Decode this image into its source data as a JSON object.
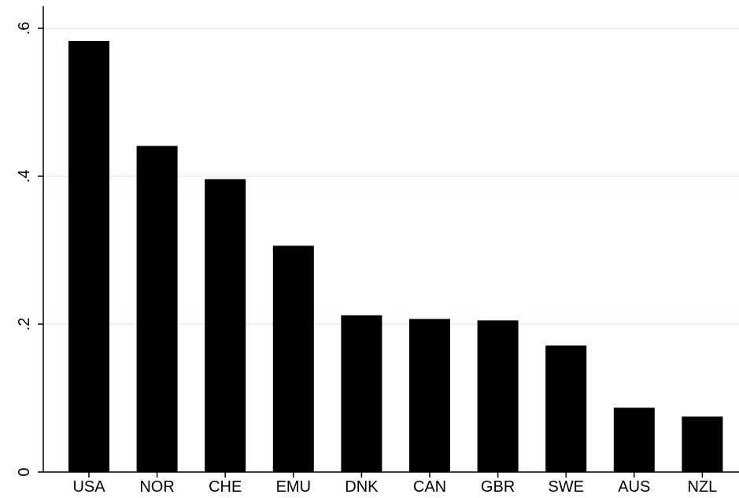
{
  "chart_data": {
    "type": "bar",
    "title": "",
    "xlabel": "",
    "ylabel": "",
    "categories": [
      "USA",
      "NOR",
      "CHE",
      "EMU",
      "DNK",
      "CAN",
      "GBR",
      "SWE",
      "AUS",
      "NZL"
    ],
    "values": [
      0.583,
      0.441,
      0.396,
      0.306,
      0.212,
      0.207,
      0.205,
      0.171,
      0.087,
      0.075
    ],
    "ylim": [
      0,
      0.6
    ],
    "yticks": [
      0,
      0.2,
      0.4,
      0.6
    ],
    "ytick_labels": [
      "0",
      ".2",
      ".4",
      ".6"
    ],
    "grid": true,
    "bar_color": "#000000",
    "grid_color": "#eaf2f3"
  }
}
